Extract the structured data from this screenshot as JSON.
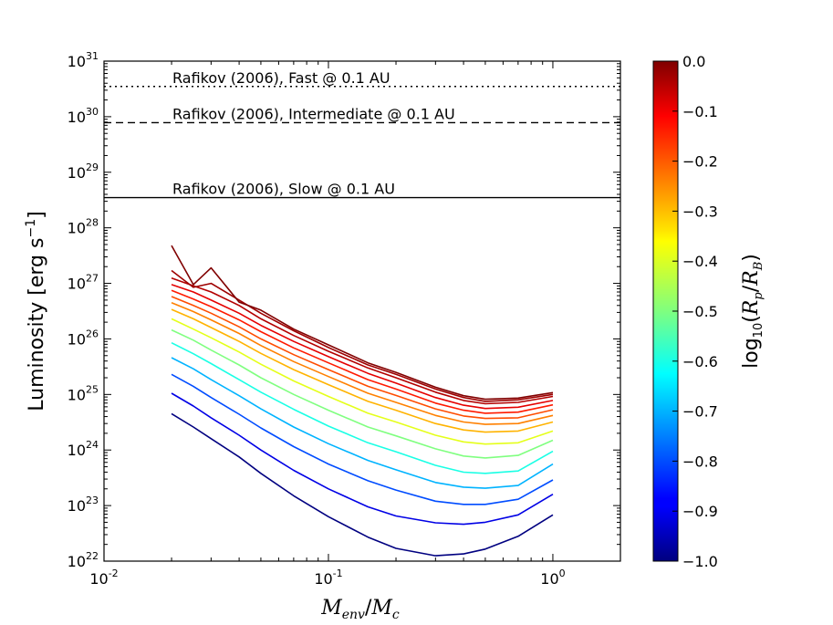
{
  "chart_data": {
    "type": "line",
    "xlabel": {
      "main": "M",
      "sub1": "env",
      "sep": "/",
      "main2": "M",
      "sub2": "c"
    },
    "ylabel": {
      "text": "Luminosity [erg s",
      "exp": "−1",
      "close": "]"
    },
    "xscale": "log",
    "yscale": "log",
    "xlim": [
      0.01,
      2.0
    ],
    "ylim": [
      1e+22,
      1e+31
    ],
    "x_ticks": [
      {
        "value": 0.01,
        "base": "10",
        "exp": "-2"
      },
      {
        "value": 0.1,
        "base": "10",
        "exp": "-1"
      },
      {
        "value": 1,
        "base": "10",
        "exp": "0"
      }
    ],
    "y_ticks": [
      {
        "value": 1e+22,
        "base": "10",
        "exp": "22"
      },
      {
        "value": 1e+23,
        "base": "10",
        "exp": "23"
      },
      {
        "value": 1e+24,
        "base": "10",
        "exp": "24"
      },
      {
        "value": 1e+25,
        "base": "10",
        "exp": "25"
      },
      {
        "value": 1e+26,
        "base": "10",
        "exp": "26"
      },
      {
        "value": 1e+27,
        "base": "10",
        "exp": "27"
      },
      {
        "value": 1e+28,
        "base": "10",
        "exp": "28"
      },
      {
        "value": 1e+29,
        "base": "10",
        "exp": "29"
      },
      {
        "value": 1e+30,
        "base": "10",
        "exp": "30"
      },
      {
        "value": 1e+31,
        "base": "10",
        "exp": "31"
      }
    ],
    "reference_lines": [
      {
        "label": "Rafikov (2006), Fast @ 0.1 AU",
        "y": 3.5e+30,
        "style": "dotted"
      },
      {
        "label": "Rafikov (2006), Intermediate @ 0.1 AU",
        "y": 7.8e+29,
        "style": "dashed"
      },
      {
        "label": "Rafikov (2006), Slow @ 0.1 AU",
        "y": 3.5e+28,
        "style": "solid"
      }
    ],
    "colorbar": {
      "label": {
        "func": "log",
        "sub": "10",
        "open": "(",
        "num": "R",
        "num_sub": "p",
        "sep": "/",
        "den": "R",
        "den_sub": "B",
        "close": ")"
      },
      "range": [
        -1.0,
        0.0
      ],
      "ticks": [
        "0.0",
        "−0.1",
        "−0.2",
        "−0.3",
        "−0.4",
        "−0.5",
        "−0.6",
        "−0.7",
        "−0.8",
        "−0.9",
        "−1.0"
      ],
      "colormap": "jet"
    },
    "x": [
      0.02,
      0.025,
      0.03,
      0.04,
      0.05,
      0.07,
      0.1,
      0.15,
      0.2,
      0.3,
      0.4,
      0.5,
      0.7,
      1.0
    ],
    "series": [
      {
        "param": -1.0,
        "values": [
          4.5e+24,
          2.6e+24,
          1.6e+24,
          7.5e+23,
          3.8e+23,
          1.5e+23,
          6.3e+22,
          2.7e+22,
          1.7e+22,
          1.25e+22,
          1.35e+22,
          1.65e+22,
          2.8e+22,
          6.8e+22
        ]
      },
      {
        "param": -0.9,
        "values": [
          1.05e+25,
          6.2e+24,
          3.8e+24,
          1.85e+24,
          1e+24,
          4.3e+23,
          2e+23,
          9.5e+22,
          6.5e+22,
          4.9e+22,
          4.6e+22,
          5e+22,
          6.8e+22,
          1.6e+23
        ]
      },
      {
        "param": -0.8,
        "values": [
          2.3e+25,
          1.4e+25,
          8.8e+24,
          4.4e+24,
          2.5e+24,
          1.15e+24,
          5.6e+23,
          2.8e+23,
          1.9e+23,
          1.2e+23,
          1.05e+23,
          1.05e+23,
          1.3e+23,
          2.9e+23
        ]
      },
      {
        "param": -0.7,
        "values": [
          4.6e+25,
          2.9e+25,
          1.85e+25,
          9.5e+24,
          5.5e+24,
          2.6e+24,
          1.3e+24,
          6.5e+23,
          4.4e+23,
          2.6e+23,
          2.15e+23,
          2.05e+23,
          2.3e+23,
          5.6e+23
        ]
      },
      {
        "param": -0.6,
        "values": [
          8.5e+25,
          5.4e+25,
          3.6e+25,
          1.85e+25,
          1.1e+25,
          5.4e+24,
          2.7e+24,
          1.35e+24,
          9.3e+23,
          5.3e+23,
          4e+23,
          3.8e+23,
          4.2e+23,
          9.5e+23
        ]
      },
      {
        "param": -0.5,
        "values": [
          1.45e+26,
          9.5e+25,
          6.3e+25,
          3.4e+25,
          2e+25,
          1e+25,
          5.2e+24,
          2.6e+24,
          1.8e+24,
          1.05e+24,
          7.8e+23,
          7.2e+23,
          8e+23,
          1.5e+24
        ]
      },
      {
        "param": -0.4,
        "values": [
          2.3e+26,
          1.5e+26,
          1.05e+26,
          5.8e+25,
          3.5e+25,
          1.75e+25,
          9.2e+24,
          4.6e+24,
          3.2e+24,
          1.85e+24,
          1.4e+24,
          1.28e+24,
          1.35e+24,
          2.2e+24
        ]
      },
      {
        "param": -0.3,
        "values": [
          3.4e+26,
          2.3e+26,
          1.6e+26,
          9e+25,
          5.5e+25,
          2.8e+25,
          1.5e+25,
          7.5e+24,
          5.2e+24,
          3e+24,
          2.3e+24,
          2.1e+24,
          2.2e+24,
          3.2e+24
        ]
      },
      {
        "param": -0.25,
        "values": [
          4.5e+26,
          3.1e+26,
          2.2e+26,
          1.25e+26,
          7.6e+25,
          3.9e+25,
          2.1e+25,
          1.05e+25,
          7.2e+24,
          4.2e+24,
          3.2e+24,
          2.9e+24,
          3e+24,
          4.2e+24
        ]
      },
      {
        "param": -0.2,
        "values": [
          5.8e+26,
          4e+26,
          2.9e+26,
          1.65e+26,
          1e+26,
          5.2e+25,
          2.8e+25,
          1.4e+25,
          9.6e+24,
          5.5e+24,
          4.1e+24,
          3.7e+24,
          3.8e+24,
          5.3e+24
        ]
      },
      {
        "param": -0.15,
        "values": [
          7.5e+26,
          5.2e+26,
          3.8e+26,
          2.2e+26,
          1.35e+26,
          6.9e+25,
          3.7e+25,
          1.85e+25,
          1.25e+25,
          7e+24,
          5.2e+24,
          4.6e+24,
          4.8e+24,
          6.5e+24
        ]
      },
      {
        "param": -0.1,
        "values": [
          9.5e+26,
          7e+26,
          5e+26,
          2.9e+26,
          1.75e+26,
          9e+25,
          4.8e+25,
          2.4e+25,
          1.6e+25,
          8.8e+24,
          6.4e+24,
          5.6e+24,
          5.9e+24,
          7.8e+24
        ]
      },
      {
        "param": -0.05,
        "values": [
          1.25e+27,
          9e+26,
          7e+26,
          4e+26,
          2.3e+26,
          1.15e+26,
          6e+25,
          3e+25,
          2e+25,
          1.1e+25,
          7.8e+24,
          6.8e+24,
          7.2e+24,
          9.2e+24
        ]
      },
      {
        "param": -0.03,
        "values": [
          1.7e+27,
          8.5e+26,
          1e+27,
          5e+26,
          2.9e+26,
          1.4e+26,
          7e+25,
          3.4e+25,
          2.3e+25,
          1.25e+25,
          8.8e+24,
          7.5e+24,
          8e+24,
          1e+25
        ]
      },
      {
        "param": 0.0,
        "values": [
          4.8e+27,
          9.5e+26,
          1.9e+27,
          4.6e+26,
          3.3e+26,
          1.5e+26,
          7.8e+25,
          3.7e+25,
          2.5e+25,
          1.35e+25,
          9.5e+24,
          8.2e+24,
          8.6e+24,
          1.08e+25
        ]
      }
    ]
  }
}
